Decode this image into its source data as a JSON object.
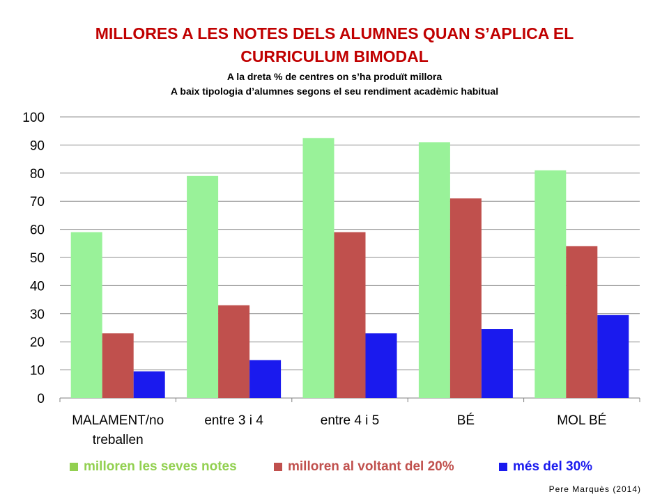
{
  "header": {
    "title_line1": "MILLORES A LES NOTES DELS ALUMNES QUAN S’APLICA EL",
    "title_line2": "CURRICULUM BIMODAL",
    "subtitle_line1": "A la dreta % de centres on s’ha produït millora",
    "subtitle_line2": "A baix tipologia d’alumnes segons el seu rendiment acadèmic  habitual"
  },
  "chart_data": {
    "type": "bar",
    "categories": [
      [
        "MALAMENT/no",
        "treballen"
      ],
      [
        "entre 3 i 4"
      ],
      [
        "entre 4 i 5"
      ],
      [
        "BÉ"
      ],
      [
        "MOL BÉ"
      ]
    ],
    "series": [
      {
        "name": "milloren les seves notes",
        "values": [
          59,
          79,
          92.5,
          91,
          81
        ],
        "color": "#99f299",
        "legend_color": "#92d050"
      },
      {
        "name": "milloren al voltant del 20%",
        "values": [
          23,
          33,
          59,
          71,
          54
        ],
        "color": "#c0504d",
        "legend_color": "#c0504d"
      },
      {
        "name": "més del 30%",
        "values": [
          9.5,
          13.5,
          23,
          24.5,
          29.5
        ],
        "color": "#1a1aee",
        "legend_color": "#1a1aee"
      }
    ],
    "ylim": [
      0,
      100
    ],
    "yticks": [
      "0",
      "10",
      "20",
      "30",
      "40",
      "50",
      "60",
      "70",
      "80",
      "90",
      "100"
    ],
    "grid": true,
    "legend_position": "bottom"
  },
  "footer": {
    "credit": "Pere Marquès (2014)"
  }
}
